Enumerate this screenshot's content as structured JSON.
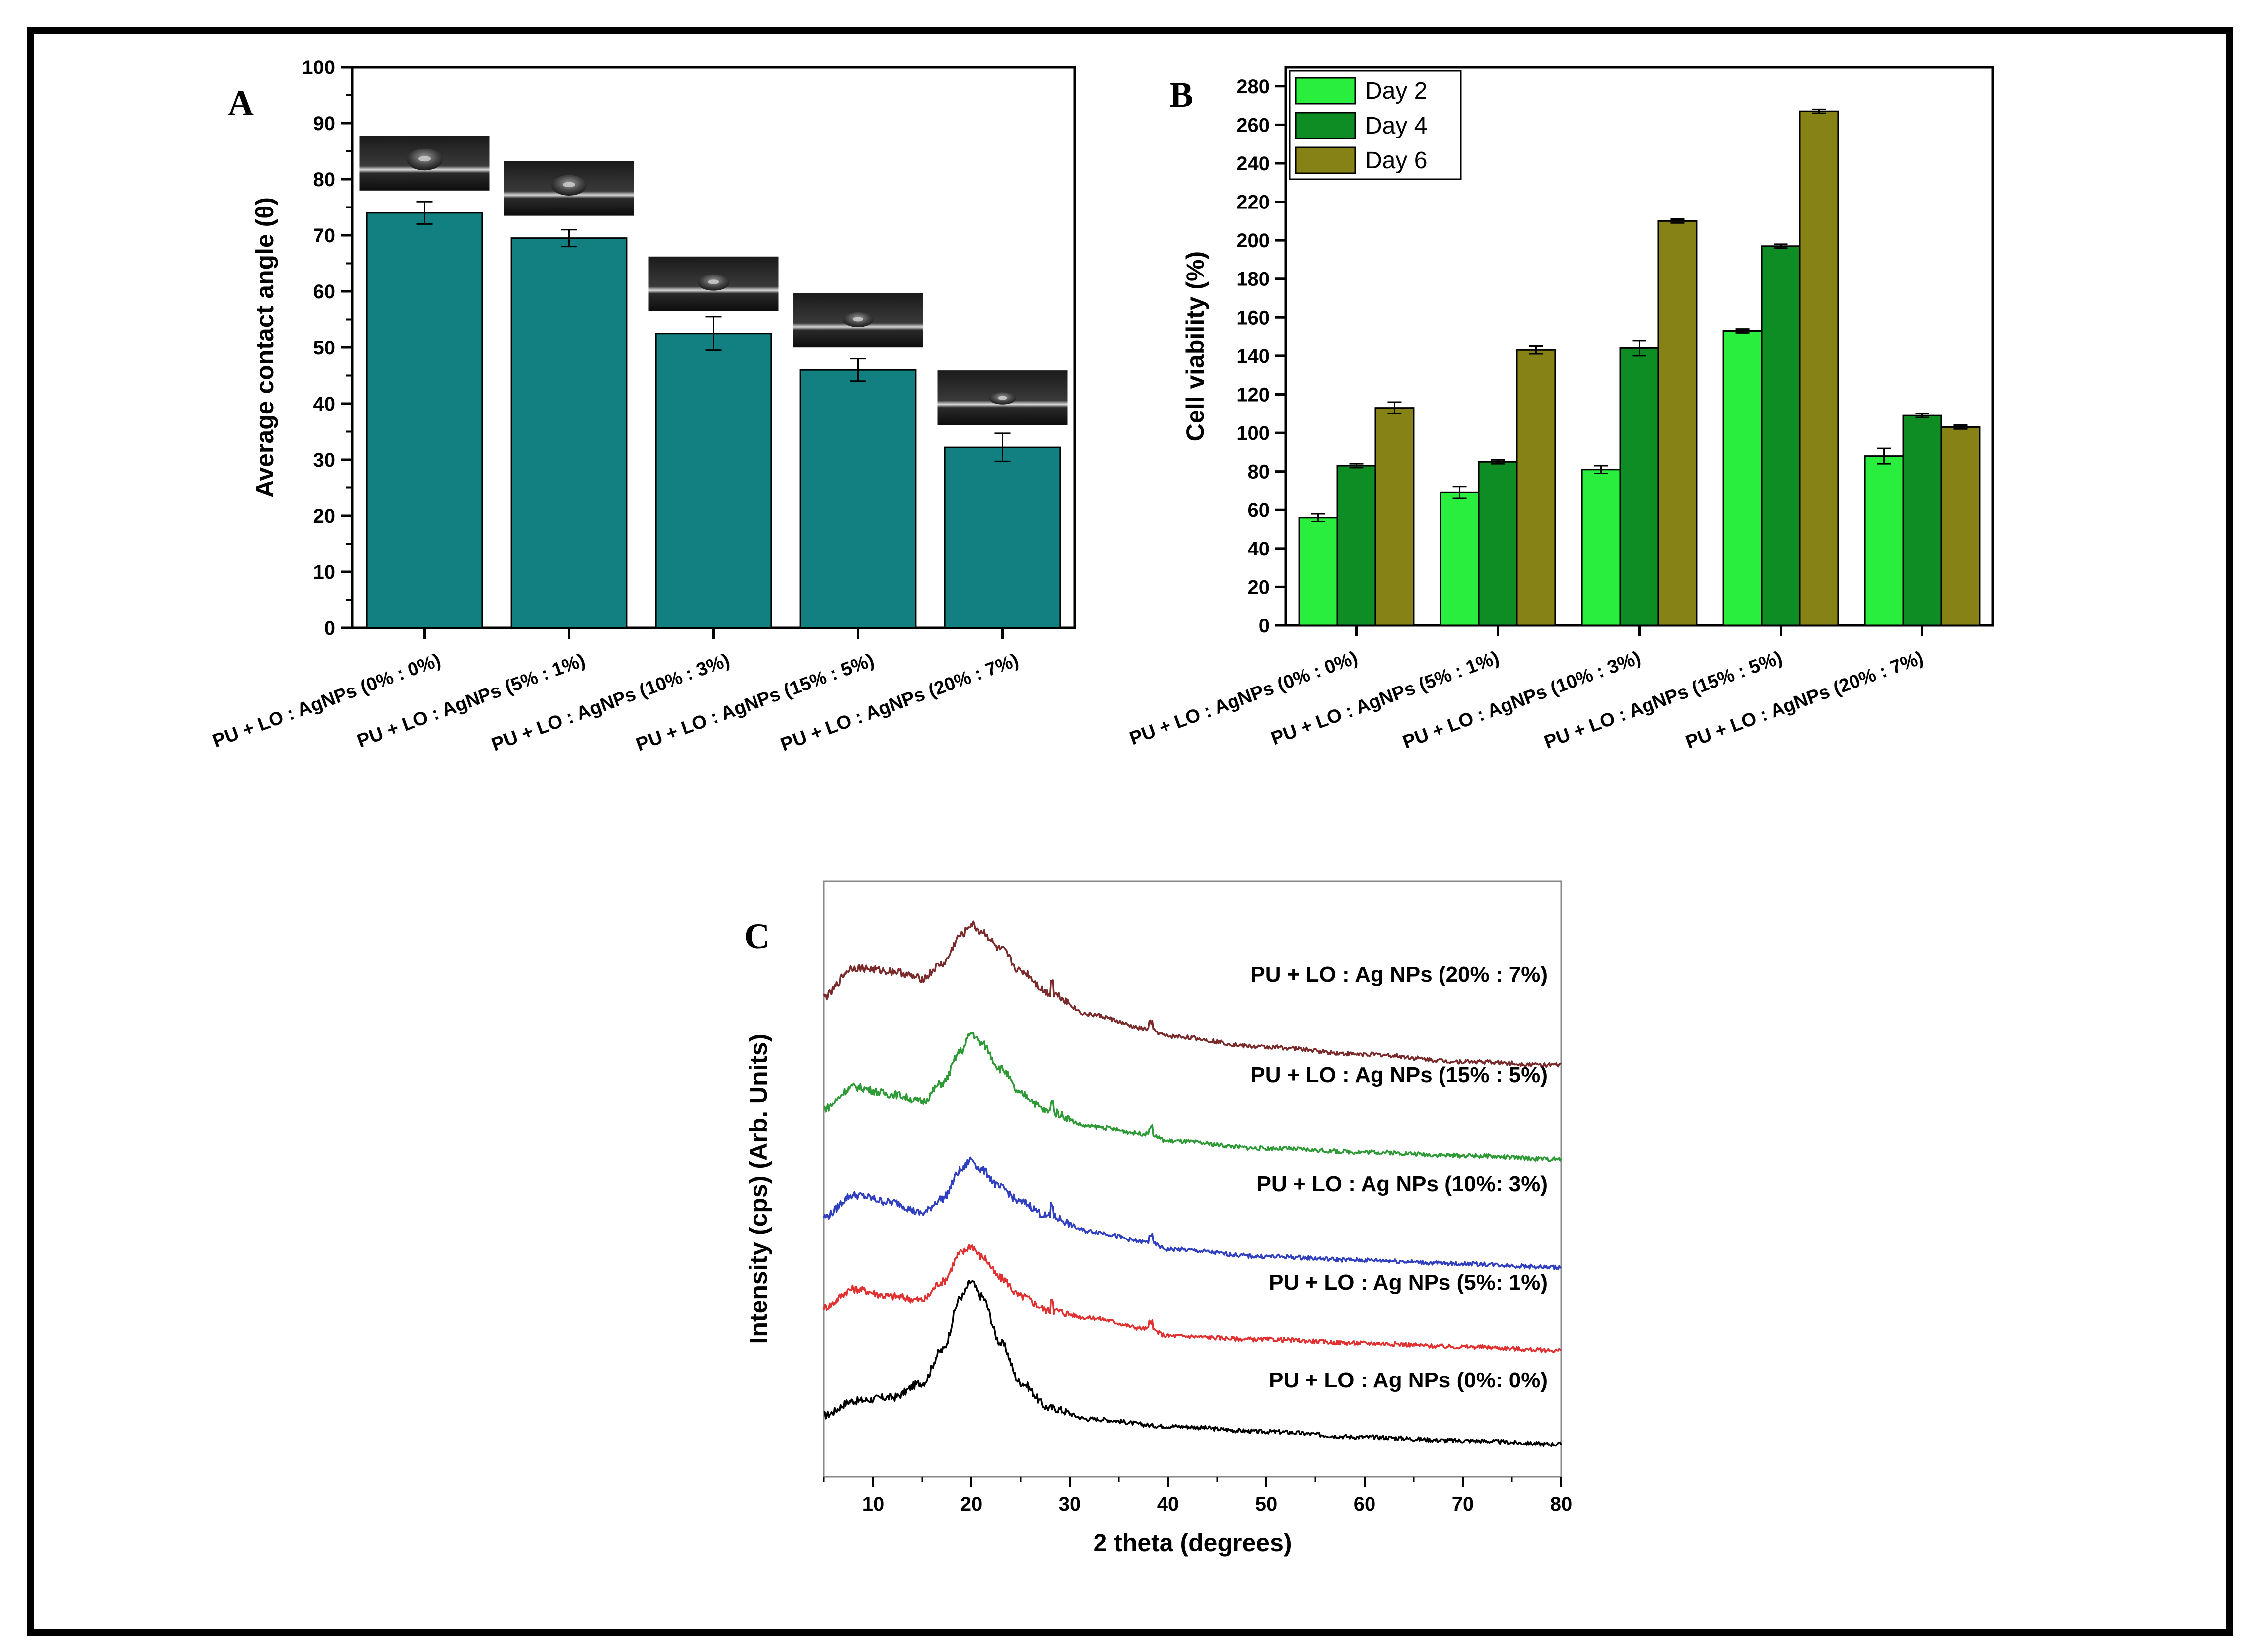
{
  "chart_data": [
    {
      "panel": "A",
      "type": "bar",
      "title": "",
      "xlabel": "",
      "ylabel": "Average contact angle (θ)",
      "ylim": [
        0,
        100
      ],
      "yticks": [
        0,
        10,
        20,
        30,
        40,
        50,
        60,
        70,
        80,
        90,
        100
      ],
      "categories": [
        "PU + LO : AgNPs (0% : 0%)",
        "PU + LO : AgNPs (5% : 1%)",
        "PU + LO : AgNPs (10% : 3%)",
        "PU + LO : AgNPs (15% : 5%)",
        "PU + LO : AgNPs (20% : 7%)"
      ],
      "series": [
        {
          "name": "Contact angle",
          "values": [
            74,
            69.5,
            52.5,
            46,
            32.2
          ],
          "errors": [
            2,
            1.5,
            3,
            2,
            2.5
          ]
        }
      ],
      "insets": "droplet photographs above each bar",
      "colors": {
        "bar": "#127f80"
      },
      "grid": false
    },
    {
      "panel": "B",
      "type": "bar",
      "title": "",
      "xlabel": "",
      "ylabel": "Cell viability (%)",
      "ylim": [
        0,
        290
      ],
      "yticks": [
        0,
        20,
        40,
        60,
        80,
        100,
        120,
        140,
        160,
        180,
        200,
        220,
        240,
        260,
        280
      ],
      "categories": [
        "PU + LO : AgNPs (0% : 0%)",
        "PU + LO : AgNPs (5% : 1%)",
        "PU + LO : AgNPs (10% : 3%)",
        "PU + LO : AgNPs (15% : 5%)",
        "PU + LO : AgNPs (20% : 7%)"
      ],
      "series": [
        {
          "name": "Day 2",
          "values": [
            56,
            69,
            81,
            153,
            88
          ],
          "errors": [
            2,
            3,
            2,
            1,
            4
          ]
        },
        {
          "name": "Day 4",
          "values": [
            83,
            85,
            144,
            197,
            109
          ],
          "errors": [
            1,
            1,
            4,
            1,
            1
          ]
        },
        {
          "name": "Day 6",
          "values": [
            113,
            143,
            210,
            267,
            103
          ],
          "errors": [
            3,
            2,
            1,
            1,
            1
          ]
        }
      ],
      "legend": "top-left",
      "colors": {
        "Day 2": "#29ee3d",
        "Day 4": "#0f8d25",
        "Day 6": "#878216"
      },
      "grid": false
    },
    {
      "panel": "C",
      "type": "line",
      "title": "",
      "xlabel": "2 theta (degrees)",
      "ylabel": "Intensity (cps) (Arb. Units)",
      "xlim": [
        5,
        80
      ],
      "xticks": [
        10,
        20,
        30,
        40,
        50,
        60,
        70,
        80
      ],
      "y_tick_labels": false,
      "series": [
        {
          "name": "PU + LO : Ag NPs (0%: 0%)",
          "color": "#000000",
          "x": [
            5,
            8,
            12,
            15,
            17,
            19,
            20,
            21,
            23,
            25,
            28,
            32,
            40,
            50,
            60,
            70,
            80
          ],
          "y": [
            0.07,
            0.11,
            0.12,
            0.16,
            0.25,
            0.4,
            0.44,
            0.4,
            0.27,
            0.16,
            0.09,
            0.06,
            0.04,
            0.025,
            0.01,
            0.0,
            -0.01
          ]
        },
        {
          "name": "PU + LO : Ag NPs (5%: 1%)",
          "color": "#e03030",
          "x": [
            5,
            8,
            12,
            15,
            17,
            19,
            20,
            21,
            23,
            25,
            28,
            32,
            38,
            40,
            50,
            60,
            70,
            80
          ],
          "y": [
            0.37,
            0.42,
            0.4,
            0.39,
            0.44,
            0.52,
            0.54,
            0.51,
            0.45,
            0.4,
            0.36,
            0.34,
            0.31,
            0.29,
            0.28,
            0.27,
            0.26,
            0.25
          ]
        },
        {
          "name": "PU + LO : Ag NPs (10%: 3%)",
          "color": "#2f3fbf",
          "x": [
            5,
            8,
            12,
            15,
            17,
            19,
            20,
            21,
            23,
            25,
            28,
            32,
            38,
            40,
            50,
            60,
            70,
            80
          ],
          "y": [
            0.62,
            0.68,
            0.66,
            0.63,
            0.67,
            0.75,
            0.78,
            0.75,
            0.7,
            0.66,
            0.62,
            0.58,
            0.55,
            0.53,
            0.51,
            0.5,
            0.49,
            0.48
          ]
        },
        {
          "name": "PU + LO : Ag NPs (15% : 5%)",
          "color": "#2e9a35",
          "x": [
            5,
            8,
            12,
            15,
            17,
            19,
            20,
            21,
            23,
            25,
            28,
            32,
            38,
            40,
            50,
            60,
            70,
            80
          ],
          "y": [
            0.92,
            0.98,
            0.96,
            0.94,
            0.99,
            1.08,
            1.13,
            1.1,
            1.03,
            0.96,
            0.91,
            0.87,
            0.85,
            0.83,
            0.81,
            0.8,
            0.79,
            0.78
          ]
        },
        {
          "name": "PU + LO : Ag NPs (20% : 7%)",
          "color": "#7a2a2a",
          "x": [
            5,
            8,
            12,
            15,
            17,
            19,
            20,
            21,
            23,
            25,
            28,
            32,
            38,
            40,
            50,
            60,
            70,
            80
          ],
          "y": [
            1.23,
            1.31,
            1.3,
            1.28,
            1.32,
            1.4,
            1.43,
            1.41,
            1.36,
            1.3,
            1.24,
            1.18,
            1.14,
            1.12,
            1.09,
            1.07,
            1.05,
            1.04
          ]
        }
      ],
      "annotations": [
        "PU + LO : Ag NPs (20% : 7%)",
        "PU + LO : Ag NPs (15% : 5%)",
        "PU + LO : Ag NPs (10%: 3%)",
        "PU + LO : Ag NPs (5%: 1%)",
        "PU + LO : Ag NPs (0%: 0%)"
      ],
      "grid": false
    }
  ]
}
